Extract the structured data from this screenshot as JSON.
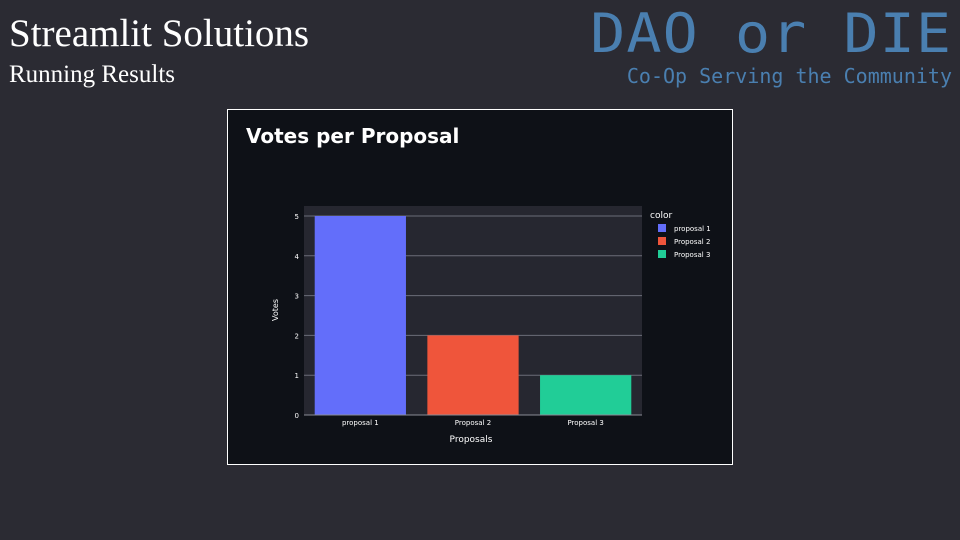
{
  "slide": {
    "title": "Streamlit Solutions",
    "subtitle": "Running Results"
  },
  "brand": {
    "name": "DAO or DIE",
    "tagline": "Co-Op Serving the Community",
    "color": "#4a7fb0"
  },
  "chart_data": {
    "type": "bar",
    "title": "Votes per Proposal",
    "xlabel": "Proposals",
    "ylabel": "Votes",
    "categories": [
      "proposal 1",
      "Proposal 2",
      "Proposal 3"
    ],
    "values": [
      5,
      2,
      1
    ],
    "colors": [
      "#636efa",
      "#ef553b",
      "#21cd97"
    ],
    "ylim": [
      0,
      5
    ],
    "yticks": [
      0,
      1,
      2,
      3,
      4,
      5
    ],
    "grid": true,
    "legend": {
      "title": "color",
      "placement": "right",
      "entries": [
        "proposal 1",
        "Proposal 2",
        "Proposal 3"
      ]
    }
  }
}
